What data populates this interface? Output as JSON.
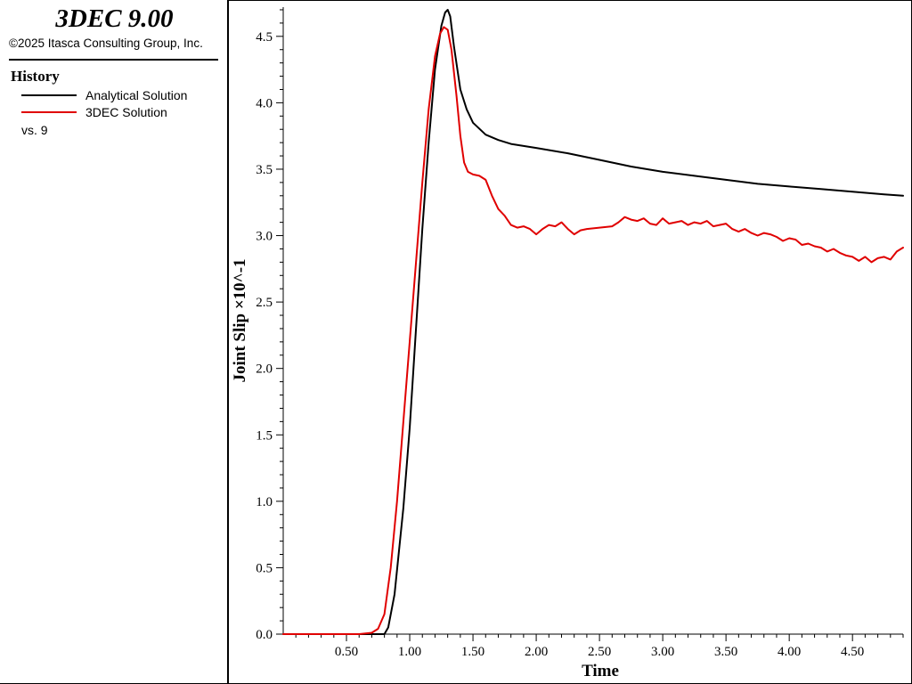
{
  "app": {
    "title": "3DEC 9.00",
    "copyright": "©2025 Itasca Consulting Group, Inc."
  },
  "legend": {
    "heading": "History",
    "items": [
      {
        "label": "Analytical Solution",
        "color": "#000000"
      },
      {
        "label": "3DEC Solution",
        "color": "#e00000"
      }
    ],
    "vs_label": "vs. 9"
  },
  "chart_data": {
    "type": "line",
    "xlabel": "Time",
    "ylabel": "Joint Slip ×10^-1",
    "xlim": [
      0.0,
      4.9
    ],
    "ylim": [
      0.0,
      4.72
    ],
    "x_ticks": [
      0.5,
      1.0,
      1.5,
      2.0,
      2.5,
      3.0,
      3.5,
      4.0,
      4.5
    ],
    "x_tick_labels": [
      "0.50",
      "1.00",
      "1.50",
      "2.00",
      "2.50",
      "3.00",
      "3.50",
      "4.00",
      "4.50"
    ],
    "y_ticks": [
      0.0,
      0.5,
      1.0,
      1.5,
      2.0,
      2.5,
      3.0,
      3.5,
      4.0,
      4.5
    ],
    "y_tick_labels": [
      "0.0",
      "0.5",
      "1.0",
      "1.5",
      "2.0",
      "2.5",
      "3.0",
      "3.5",
      "4.0",
      "4.5"
    ],
    "grid": false,
    "series": [
      {
        "name": "Analytical Solution",
        "color": "#000000",
        "x": [
          0.0,
          0.7,
          0.8,
          0.83,
          0.88,
          0.95,
          1.0,
          1.05,
          1.1,
          1.15,
          1.2,
          1.25,
          1.28,
          1.3,
          1.32,
          1.35,
          1.4,
          1.45,
          1.5,
          1.6,
          1.7,
          1.8,
          2.0,
          2.25,
          2.5,
          2.75,
          3.0,
          3.25,
          3.5,
          3.75,
          4.0,
          4.25,
          4.5,
          4.75,
          4.9
        ],
        "y": [
          0.0,
          0.0,
          0.0,
          0.05,
          0.3,
          0.95,
          1.55,
          2.3,
          3.05,
          3.7,
          4.25,
          4.58,
          4.68,
          4.7,
          4.65,
          4.42,
          4.1,
          3.95,
          3.85,
          3.76,
          3.72,
          3.69,
          3.66,
          3.62,
          3.57,
          3.52,
          3.48,
          3.45,
          3.42,
          3.39,
          3.37,
          3.35,
          3.33,
          3.31,
          3.3
        ]
      },
      {
        "name": "3DEC Solution",
        "color": "#e00000",
        "x": [
          0.0,
          0.6,
          0.7,
          0.75,
          0.8,
          0.85,
          0.9,
          0.95,
          1.0,
          1.05,
          1.1,
          1.15,
          1.2,
          1.24,
          1.27,
          1.3,
          1.33,
          1.37,
          1.4,
          1.43,
          1.46,
          1.5,
          1.55,
          1.6,
          1.65,
          1.7,
          1.75,
          1.8,
          1.85,
          1.9,
          1.95,
          2.0,
          2.05,
          2.1,
          2.15,
          2.2,
          2.25,
          2.3,
          2.35,
          2.4,
          2.5,
          2.6,
          2.65,
          2.7,
          2.75,
          2.8,
          2.85,
          2.9,
          2.95,
          3.0,
          3.05,
          3.1,
          3.15,
          3.2,
          3.25,
          3.3,
          3.35,
          3.4,
          3.45,
          3.5,
          3.55,
          3.6,
          3.65,
          3.7,
          3.75,
          3.8,
          3.85,
          3.9,
          3.95,
          4.0,
          4.05,
          4.1,
          4.15,
          4.2,
          4.25,
          4.3,
          4.35,
          4.4,
          4.45,
          4.5,
          4.55,
          4.6,
          4.65,
          4.7,
          4.75,
          4.8,
          4.85,
          4.9
        ],
        "y": [
          0.0,
          0.0,
          0.01,
          0.04,
          0.15,
          0.5,
          1.0,
          1.6,
          2.2,
          2.8,
          3.4,
          3.95,
          4.35,
          4.52,
          4.57,
          4.55,
          4.4,
          4.05,
          3.75,
          3.55,
          3.48,
          3.46,
          3.45,
          3.42,
          3.3,
          3.2,
          3.15,
          3.08,
          3.06,
          3.07,
          3.05,
          3.01,
          3.05,
          3.08,
          3.07,
          3.1,
          3.05,
          3.01,
          3.04,
          3.05,
          3.06,
          3.07,
          3.1,
          3.14,
          3.12,
          3.11,
          3.13,
          3.09,
          3.08,
          3.13,
          3.09,
          3.1,
          3.11,
          3.08,
          3.1,
          3.09,
          3.11,
          3.07,
          3.08,
          3.09,
          3.05,
          3.03,
          3.05,
          3.02,
          3.0,
          3.02,
          3.01,
          2.99,
          2.96,
          2.98,
          2.97,
          2.93,
          2.94,
          2.92,
          2.91,
          2.88,
          2.9,
          2.87,
          2.85,
          2.84,
          2.81,
          2.84,
          2.8,
          2.83,
          2.84,
          2.82,
          2.88,
          2.91
        ]
      }
    ]
  }
}
